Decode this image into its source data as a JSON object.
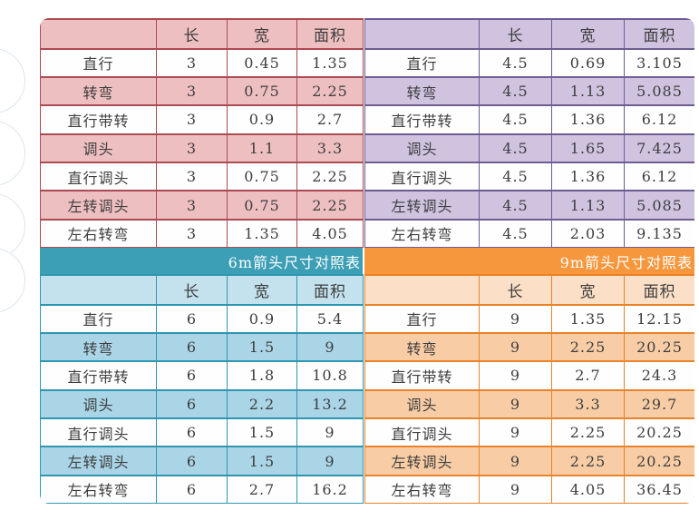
{
  "page": {
    "background": "#ffffff"
  },
  "decorations": {
    "left_edge_circle_count": 4,
    "circle_outline_color": "#dde5ee"
  },
  "chart_data": [
    {
      "type": "table",
      "id": "table-3m",
      "banner": null,
      "columns": [
        "长",
        "宽",
        "面积"
      ],
      "corner_label": "",
      "theme": {
        "header_row": "#eebfc1",
        "alt_row": "#eebfc1",
        "border": "#aa4b52",
        "banner_bg": null
      },
      "rows": [
        {
          "label": "直行",
          "len": "3",
          "width": "0.45",
          "area": "1.35"
        },
        {
          "label": "转弯",
          "len": "3",
          "width": "0.75",
          "area": "2.25"
        },
        {
          "label": "直行带转",
          "len": "3",
          "width": "0.9",
          "area": "2.7"
        },
        {
          "label": "调头",
          "len": "3",
          "width": "1.1",
          "area": "3.3"
        },
        {
          "label": "直行调头",
          "len": "3",
          "width": "0.75",
          "area": "2.25"
        },
        {
          "label": "左转调头",
          "len": "3",
          "width": "0.75",
          "area": "2.25"
        },
        {
          "label": "左右转弯",
          "len": "3",
          "width": "1.35",
          "area": "4.05"
        }
      ]
    },
    {
      "type": "table",
      "id": "table-4-5m",
      "banner": null,
      "columns": [
        "长",
        "宽",
        "面积"
      ],
      "corner_label": "",
      "theme": {
        "header_row": "#cfc3e0",
        "alt_row": "#cfc3e0",
        "border": "#6d5c92",
        "banner_bg": null
      },
      "rows": [
        {
          "label": "直行",
          "len": "4.5",
          "width": "0.69",
          "area": "3.105"
        },
        {
          "label": "转弯",
          "len": "4.5",
          "width": "1.13",
          "area": "5.085"
        },
        {
          "label": "直行带转",
          "len": "4.5",
          "width": "1.36",
          "area": "6.12"
        },
        {
          "label": "调头",
          "len": "4.5",
          "width": "1.65",
          "area": "7.425"
        },
        {
          "label": "直行调头",
          "len": "4.5",
          "width": "1.36",
          "area": "6.12"
        },
        {
          "label": "左转调头",
          "len": "4.5",
          "width": "1.13",
          "area": "5.085"
        },
        {
          "label": "左右转弯",
          "len": "4.5",
          "width": "2.03",
          "area": "9.135"
        }
      ]
    },
    {
      "type": "table",
      "id": "table-6m",
      "banner": "6m箭头尺寸对照表",
      "columns": [
        "长",
        "宽",
        "面积"
      ],
      "corner_label": "",
      "theme": {
        "header_row": "#c4e1ee",
        "alt_row": "#a9d5e7",
        "border": "#2f96b0",
        "banner_bg": "#3d9fb6"
      },
      "rows": [
        {
          "label": "直行",
          "len": "6",
          "width": "0.9",
          "area": "5.4"
        },
        {
          "label": "转弯",
          "len": "6",
          "width": "1.5",
          "area": "9"
        },
        {
          "label": "直行带转",
          "len": "6",
          "width": "1.8",
          "area": "10.8"
        },
        {
          "label": "调头",
          "len": "6",
          "width": "2.2",
          "area": "13.2"
        },
        {
          "label": "直行调头",
          "len": "6",
          "width": "1.5",
          "area": "9"
        },
        {
          "label": "左转调头",
          "len": "6",
          "width": "1.5",
          "area": "9"
        },
        {
          "label": "左右转弯",
          "len": "6",
          "width": "2.7",
          "area": "16.2"
        }
      ]
    },
    {
      "type": "table",
      "id": "table-9m",
      "banner": "9m箭头尺寸对照表",
      "columns": [
        "长",
        "宽",
        "面积"
      ],
      "corner_label": "",
      "theme": {
        "header_row": "#fbdfc6",
        "alt_row": "#f8cda6",
        "border": "#e9832a",
        "banner_bg": "#f7973d"
      },
      "rows": [
        {
          "label": "直行",
          "len": "9",
          "width": "1.35",
          "area": "12.15"
        },
        {
          "label": "转弯",
          "len": "9",
          "width": "2.25",
          "area": "20.25"
        },
        {
          "label": "直行带转",
          "len": "9",
          "width": "2.7",
          "area": "24.3"
        },
        {
          "label": "调头",
          "len": "9",
          "width": "3.3",
          "area": "29.7"
        },
        {
          "label": "直行调头",
          "len": "9",
          "width": "2.25",
          "area": "20.25"
        },
        {
          "label": "左转调头",
          "len": "9",
          "width": "2.25",
          "area": "20.25"
        },
        {
          "label": "左右转弯",
          "len": "9",
          "width": "4.05",
          "area": "36.45"
        }
      ]
    }
  ]
}
